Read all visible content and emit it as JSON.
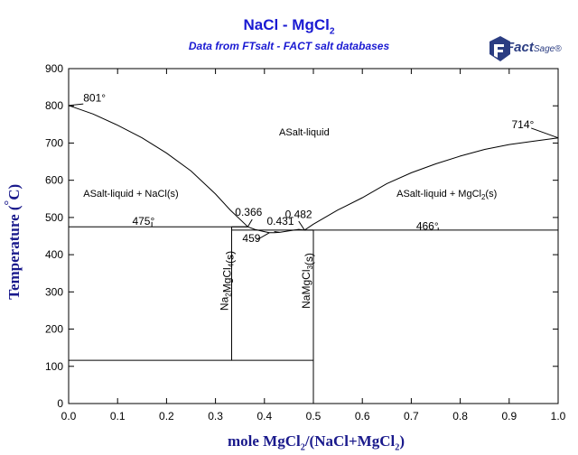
{
  "chart_data": {
    "type": "line",
    "title": "NaCl - MgCl",
    "title_sub": "2",
    "subtitle": "Data from FTsalt - FACT salt databases",
    "logo": {
      "main": "Fact",
      "sup": "Sage",
      "reg": "®"
    },
    "xlabel": {
      "prefix": "mole MgCl",
      "sub1": "2",
      "middle": "/(NaCl+MgCl",
      "sub2": "2",
      "suffix": ")"
    },
    "ylabel": {
      "prefix": "Temperature (",
      "deg": "°",
      "suffix": "C)"
    },
    "xlim": [
      0,
      1
    ],
    "ylim": [
      0,
      900
    ],
    "xticks": [
      "0.0",
      "0.1",
      "0.2",
      "0.3",
      "0.4",
      "0.5",
      "0.6",
      "0.7",
      "0.8",
      "0.9",
      "1.0"
    ],
    "yticks": [
      "0",
      "100",
      "200",
      "300",
      "400",
      "500",
      "600",
      "700",
      "800",
      "900"
    ],
    "grid": false,
    "liquidus_nacl": [
      [
        0,
        801
      ],
      [
        0.05,
        778
      ],
      [
        0.1,
        748
      ],
      [
        0.15,
        714
      ],
      [
        0.2,
        673
      ],
      [
        0.25,
        625
      ],
      [
        0.3,
        563
      ],
      [
        0.33,
        520
      ],
      [
        0.366,
        475
      ]
    ],
    "liquidus_na2mgcl4": [
      [
        0.366,
        475
      ],
      [
        0.38,
        468
      ],
      [
        0.4,
        462
      ],
      [
        0.41,
        459
      ],
      [
        0.42,
        459
      ],
      [
        0.431,
        460
      ]
    ],
    "liquidus_namgcl3": [
      [
        0.431,
        460
      ],
      [
        0.45,
        464
      ],
      [
        0.47,
        468
      ],
      [
        0.482,
        466
      ]
    ],
    "liquidus_mgcl2": [
      [
        0.482,
        466
      ],
      [
        0.5,
        482
      ],
      [
        0.55,
        520
      ],
      [
        0.6,
        553
      ],
      [
        0.65,
        591
      ],
      [
        0.7,
        620
      ],
      [
        0.75,
        644
      ],
      [
        0.8,
        665
      ],
      [
        0.85,
        683
      ],
      [
        0.9,
        696
      ],
      [
        0.95,
        705
      ],
      [
        1.0,
        714
      ]
    ],
    "eutectic_lines": [
      {
        "y": 475,
        "x": [
          0,
          0.366
        ]
      },
      {
        "y": 466,
        "x": [
          0.482,
          1.0
        ]
      },
      {
        "y": 475,
        "x": [
          0.333,
          0.366
        ]
      },
      {
        "y": 466,
        "x": [
          0.5,
          0.5
        ]
      }
    ],
    "compounds": [
      {
        "x": 0.333,
        "y_top": 475,
        "y_bottom": 116,
        "label": "Na",
        "sub": "2",
        "rest": "MgCl",
        "sub2": "4",
        "tail": "(s)"
      },
      {
        "x": 0.5,
        "y_top": 466,
        "y_bottom": 0,
        "label": "NaMgCl",
        "sub": "3",
        "rest": "",
        "sub2": "",
        "tail": "(s)"
      }
    ],
    "lower_line": {
      "y": 116,
      "x": [
        0,
        0.5
      ]
    },
    "annotations": [
      {
        "text": "801°",
        "x": 0.03,
        "y": 812
      },
      {
        "text": "714°",
        "x": 0.905,
        "y": 740
      },
      {
        "text": "475°",
        "x": 0.13,
        "y": 480
      },
      {
        "text": "466°",
        "x": 0.71,
        "y": 467
      },
      {
        "text": "0.366",
        "x": 0.34,
        "y": 504
      },
      {
        "text": "0.482",
        "x": 0.442,
        "y": 498
      },
      {
        "text": "0.431",
        "x": 0.405,
        "y": 480
      },
      {
        "text": "459",
        "x": 0.355,
        "y": 434
      }
    ],
    "region_labels": [
      {
        "text": "ASalt-liquid",
        "x": 0.43,
        "y": 720
      },
      {
        "text": "ASalt-liquid + NaCl(s)",
        "x": 0.03,
        "y": 555
      },
      {
        "text": "ASalt-liquid + MgCl",
        "sub": "2",
        "tail": "(s)",
        "x": 0.67,
        "y": 555
      }
    ]
  },
  "colors": {
    "title": "#1a1ad2",
    "axis_label": "#1a1a8c",
    "lines": "#000000",
    "logo": "#2b3d82"
  }
}
